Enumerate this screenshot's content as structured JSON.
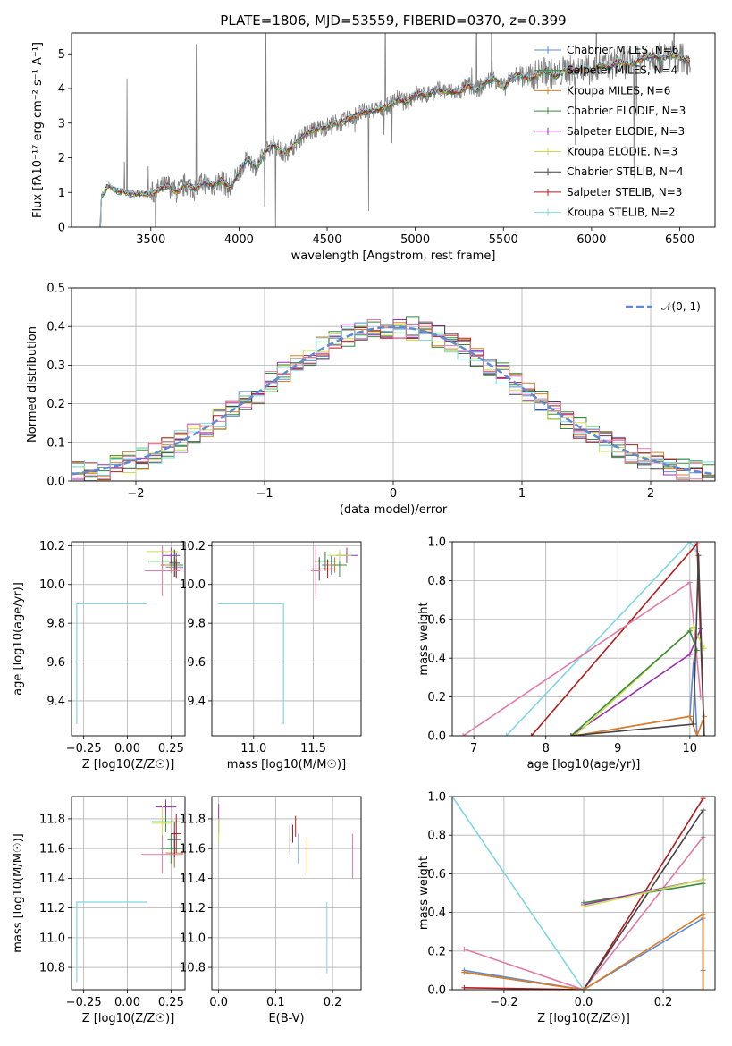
{
  "colors": {
    "chab_miles": "#5b8bd4",
    "salp_miles": "#2e8b3c",
    "krou_miles": "#e07b1f",
    "chab_elodie": "#3c8a3c",
    "salp_elodie": "#9a2fae",
    "krou_elodie": "#c8e04a",
    "chab_stelib": "#444444",
    "salp_stelib": "#b31b1b",
    "krou_stelib": "#7fd6e6",
    "pink": "#e07aa8",
    "gauss": "#5b8bd4",
    "data": "#808080",
    "grid": "#b0b0b0"
  },
  "chart_data": [
    {
      "type": "line",
      "title": "PLATE=1806, MJD=53559, FIBERID=0370, z=0.399",
      "xlabel": "wavelength [Angstrom, rest frame]",
      "ylabel": "Flux [fλ10⁻¹⁷ erg cm⁻² s⁻¹ A⁻¹]",
      "xlim": [
        3050,
        6700
      ],
      "ylim": [
        0,
        5.6
      ],
      "xticks": [
        "3500",
        "4000",
        "4500",
        "5000",
        "5500",
        "6000",
        "6500"
      ],
      "yticks": [
        "0",
        "1",
        "2",
        "3",
        "4",
        "5"
      ],
      "legend": "upper-right",
      "series": [
        {
          "name": "Chabrier MILES, N_SSP=6"
        },
        {
          "name": "Salpeter MILES, N_SSP=4"
        },
        {
          "name": "Kroupa MILES, N_SSP=6"
        },
        {
          "name": "Chabrier ELODIE, N_SSP=3"
        },
        {
          "name": "Salpeter ELODIE, N_SSP=3"
        },
        {
          "name": "Kroupa ELODIE, N_SSP=3"
        },
        {
          "name": "Chabrier STELIB, N_SSP=4"
        },
        {
          "name": "Salpeter STELIB, N_SSP=3"
        },
        {
          "name": "Kroupa STELIB, N_SSP=2"
        }
      ],
      "model_curve": {
        "x": [
          3220,
          3260,
          3300,
          3350,
          3400,
          3450,
          3500,
          3550,
          3600,
          3650,
          3700,
          3750,
          3800,
          3850,
          3900,
          3950,
          4000,
          4050,
          4100,
          4150,
          4200,
          4250,
          4300,
          4350,
          4400,
          4450,
          4500,
          4550,
          4600,
          4650,
          4700,
          4750,
          4800,
          4850,
          4900,
          4950,
          5000,
          5050,
          5100,
          5150,
          5200,
          5250,
          5300,
          5350,
          5400,
          5450,
          5500,
          5550,
          5600,
          5650,
          5700,
          5750,
          5800,
          5850,
          5900,
          5950,
          6000,
          6050,
          6100,
          6150,
          6200,
          6250,
          6300,
          6350,
          6400,
          6450,
          6500,
          6550
        ],
        "y": [
          0.9,
          1.2,
          1.05,
          1.0,
          0.95,
          0.97,
          0.95,
          1.1,
          1.2,
          1.0,
          1.25,
          1.1,
          1.3,
          1.2,
          1.35,
          1.1,
          1.6,
          2.0,
          1.7,
          2.2,
          2.4,
          2.1,
          2.3,
          2.6,
          2.75,
          2.85,
          2.9,
          3.0,
          3.05,
          3.2,
          3.3,
          3.35,
          3.4,
          3.5,
          3.7,
          3.6,
          3.85,
          3.8,
          3.9,
          3.95,
          3.9,
          3.9,
          4.1,
          3.95,
          4.2,
          4.3,
          4.0,
          4.35,
          4.4,
          4.25,
          4.45,
          4.5,
          4.35,
          4.55,
          4.5,
          4.6,
          4.5,
          4.7,
          4.6,
          4.8,
          4.7,
          4.75,
          4.9,
          4.95,
          4.85,
          5.0,
          4.9,
          4.8
        ]
      }
    },
    {
      "type": "step",
      "xlabel": "(data-model)/error",
      "ylabel": "Normed distribution",
      "xlim": [
        -2.5,
        2.5
      ],
      "ylim": [
        0,
        0.5
      ],
      "xticks": [
        "−2",
        "−1",
        "0",
        "1",
        "2"
      ],
      "yticks": [
        "0.0",
        "0.1",
        "0.2",
        "0.3",
        "0.4",
        "0.5"
      ],
      "legend": "upper-right",
      "gauss_label": "𝒩(0, 1)"
    },
    {
      "type": "scatter",
      "xlabel": "Z [log10(Z/Z☉)]",
      "ylabel": "age  [log10(age/yr)]",
      "xlim": [
        -0.32,
        0.33
      ],
      "ylim": [
        9.22,
        10.22
      ],
      "xticks": [
        "−0.25",
        "0.00",
        "0.25"
      ],
      "yticks": [
        "9.4",
        "9.6",
        "9.8",
        "10.0",
        "10.2"
      ]
    },
    {
      "type": "scatter",
      "xlabel": "mass [log10(M/M☉)]",
      "ylabel": "",
      "xlim": [
        10.65,
        11.9
      ],
      "ylim": [
        9.22,
        10.22
      ],
      "xticks": [
        "11.0",
        "11.5"
      ],
      "yticks": [
        "9.4",
        "9.6",
        "9.8",
        "10.0",
        "10.2"
      ]
    },
    {
      "type": "line",
      "xlabel": "age  [log10(age/yr)]",
      "ylabel": "mass weight",
      "xlim": [
        6.7,
        10.35
      ],
      "ylim": [
        0,
        1.0
      ],
      "xticks": [
        "7",
        "8",
        "9",
        "10"
      ],
      "yticks": [
        "0.0",
        "0.2",
        "0.4",
        "0.6",
        "0.8",
        "1.0"
      ]
    },
    {
      "type": "scatter",
      "xlabel": "Z [log10(Z/Z☉)]",
      "ylabel": "mass [log10(M/M☉)]",
      "xlim": [
        -0.32,
        0.33
      ],
      "ylim": [
        10.65,
        11.95
      ],
      "xticks": [
        "−0.25",
        "0.00",
        "0.25"
      ],
      "yticks": [
        "10.8",
        "11.0",
        "11.2",
        "11.4",
        "11.6",
        "11.8"
      ]
    },
    {
      "type": "scatter",
      "xlabel": "E(B-V)",
      "ylabel": "",
      "xlim": [
        -0.012,
        0.25
      ],
      "ylim": [
        10.65,
        11.95
      ],
      "xticks": [
        "0.0",
        "0.1",
        "0.2"
      ],
      "yticks": [
        "10.8",
        "11.0",
        "11.2",
        "11.4",
        "11.6",
        "11.8"
      ]
    },
    {
      "type": "line",
      "xlabel": "Z [log10(Z/Z☉)]",
      "ylabel": "mass weight",
      "xlim": [
        -0.33,
        0.33
      ],
      "ylim": [
        0,
        1.0
      ],
      "xticks": [
        "−0.2",
        "0.0",
        "0.2"
      ],
      "yticks": [
        "0.0",
        "0.2",
        "0.4",
        "0.6",
        "0.8",
        "1.0"
      ]
    }
  ]
}
